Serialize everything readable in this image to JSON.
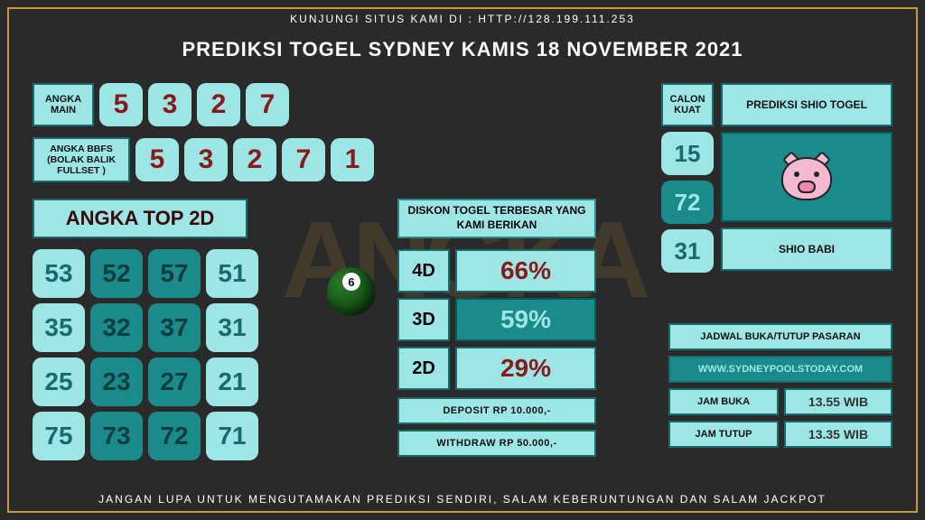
{
  "colors": {
    "border_gold": "#c99a3a",
    "bg": "#2a2a2a",
    "light_teal": "#9de6e6",
    "dark_teal": "#1a8a8a",
    "dark_teal_border": "#1a6a6a",
    "red_text": "#8a1a1a",
    "teal_text": "#2a9a9a"
  },
  "header": "KUNJUNGI SITUS KAMI DI : HTTP://128.199.111.253",
  "footer": "JANGAN LUPA UNTUK MENGUTAMAKAN PREDIKSI SENDIRI, SALAM KEBERUNTUNGAN DAN SALAM JACKPOT",
  "title": "PREDIKSI TOGEL SYDNEY KAMIS 18 NOVEMBER 2021",
  "angka_main": {
    "label": "ANGKA MAIN",
    "numbers": [
      "5",
      "3",
      "2",
      "7"
    ],
    "number_colors": [
      "#8a1a1a",
      "#8a1a1a",
      "#8a1a1a",
      "#8a1a1a"
    ]
  },
  "angka_bbfs": {
    "label": "ANGKA BBFS (BOLAK BALIK FULLSET )",
    "numbers": [
      "5",
      "3",
      "2",
      "7",
      "1"
    ],
    "number_colors": [
      "#8a1a1a",
      "#8a1a1a",
      "#8a1a1a",
      "#8a1a1a",
      "#8a1a1a"
    ]
  },
  "top2d": {
    "header": "ANGKA TOP 2D",
    "header_color": "#3a0a0a",
    "cells": [
      {
        "v": "53",
        "bg": "#9de6e6",
        "fg": "#1a6a6a"
      },
      {
        "v": "52",
        "bg": "#1a8a8a",
        "fg": "#0b3e3e"
      },
      {
        "v": "57",
        "bg": "#1a8a8a",
        "fg": "#0b3e3e"
      },
      {
        "v": "51",
        "bg": "#9de6e6",
        "fg": "#1a6a6a"
      },
      {
        "v": "35",
        "bg": "#9de6e6",
        "fg": "#1a6a6a"
      },
      {
        "v": "32",
        "bg": "#1a8a8a",
        "fg": "#0b3e3e"
      },
      {
        "v": "37",
        "bg": "#1a8a8a",
        "fg": "#0b3e3e"
      },
      {
        "v": "31",
        "bg": "#9de6e6",
        "fg": "#1a6a6a"
      },
      {
        "v": "25",
        "bg": "#9de6e6",
        "fg": "#1a6a6a"
      },
      {
        "v": "23",
        "bg": "#1a8a8a",
        "fg": "#0b3e3e"
      },
      {
        "v": "27",
        "bg": "#1a8a8a",
        "fg": "#0b3e3e"
      },
      {
        "v": "21",
        "bg": "#9de6e6",
        "fg": "#1a6a6a"
      },
      {
        "v": "75",
        "bg": "#9de6e6",
        "fg": "#1a6a6a"
      },
      {
        "v": "73",
        "bg": "#1a8a8a",
        "fg": "#0b3e3e"
      },
      {
        "v": "72",
        "bg": "#1a8a8a",
        "fg": "#0b3e3e"
      },
      {
        "v": "71",
        "bg": "#9de6e6",
        "fg": "#1a6a6a"
      }
    ]
  },
  "diskon": {
    "label": "DISKON TOGEL TERBESAR YANG KAMI BERIKAN",
    "rows": [
      {
        "k": "4D",
        "v": "66%",
        "bg": "#9de6e6",
        "fg": "#8a1a1a",
        "bc": "#1a6a6a"
      },
      {
        "k": "3D",
        "v": "59%",
        "bg": "#1a8a8a",
        "fg": "#9de6e6",
        "bc": "#0a5a5a"
      },
      {
        "k": "2D",
        "v": "29%",
        "bg": "#9de6e6",
        "fg": "#8a1a1a",
        "bc": "#1a6a6a"
      }
    ],
    "deposit": "DEPOSIT RP 10.000,-",
    "withdraw": "WITHDRAW RP 50.000,-"
  },
  "calon": {
    "label": "CALON KUAT",
    "numbers": [
      "15",
      "72",
      "31"
    ],
    "number_bg": [
      "#9de6e6",
      "#1a8a8a",
      "#9de6e6"
    ],
    "number_fg": [
      "#1a6a6a",
      "#9de6e6",
      "#1a6a6a"
    ]
  },
  "shio": {
    "title": "PREDIKSI SHIO TOGEL",
    "name": "SHIO BABI"
  },
  "schedule": {
    "title": "JADWAL BUKA/TUTUP PASARAN",
    "site": "WWW.SYDNEYPOOLSTODAY.COM",
    "open_label": "JAM BUKA",
    "open_time": "13.55 WIB",
    "close_label": "JAM TUTUP",
    "close_time": "13.35 WIB"
  }
}
